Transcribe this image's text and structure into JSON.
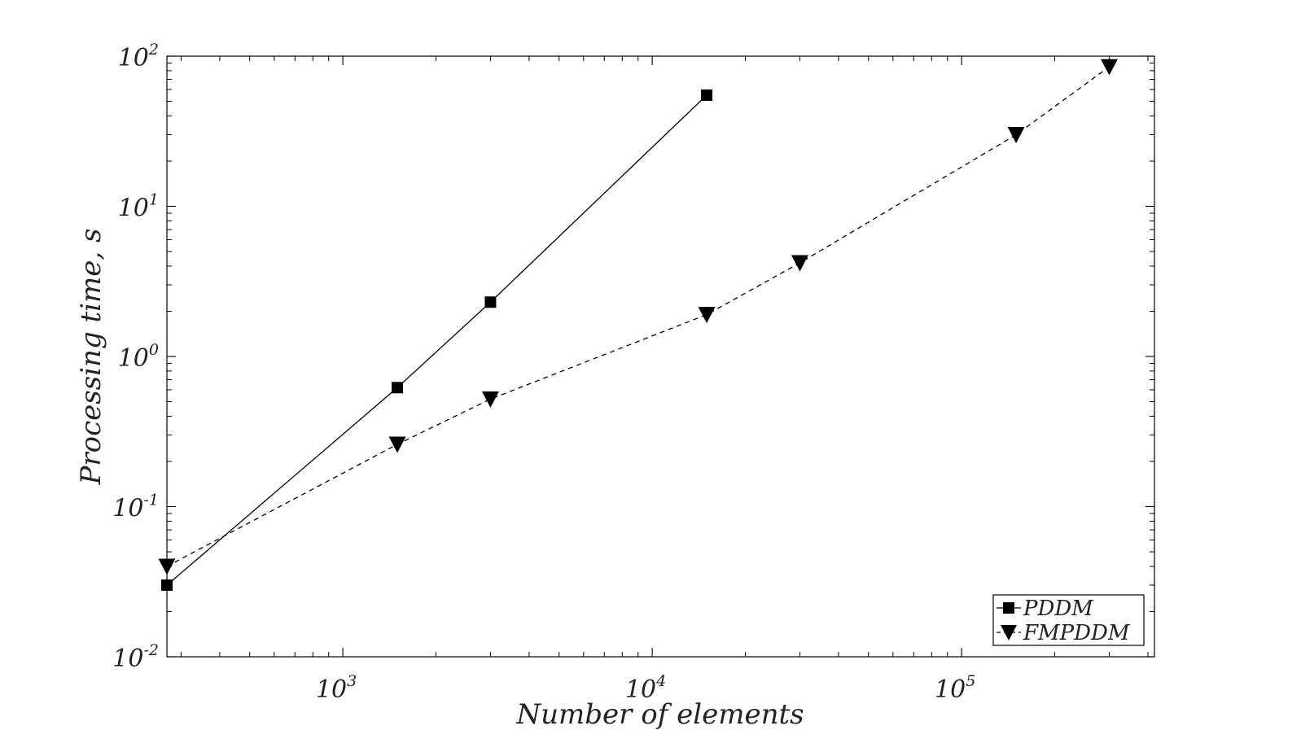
{
  "chart_data": {
    "type": "line",
    "xlabel": "Number of elements",
    "ylabel": "Processing time, s",
    "x_scale": "log",
    "y_scale": "log",
    "xlim": [
      270,
      420000
    ],
    "ylim": [
      0.01,
      100
    ],
    "x_ticks": [
      {
        "value": 1000,
        "base": "10",
        "exp": "3"
      },
      {
        "value": 10000,
        "base": "10",
        "exp": "4"
      },
      {
        "value": 100000,
        "base": "10",
        "exp": "5"
      }
    ],
    "y_ticks": [
      {
        "value": 0.01,
        "base": "10",
        "exp": "-2"
      },
      {
        "value": 0.1,
        "base": "10",
        "exp": "-1"
      },
      {
        "value": 1,
        "base": "10",
        "exp": "0"
      },
      {
        "value": 10,
        "base": "10",
        "exp": "1"
      },
      {
        "value": 100,
        "base": "10",
        "exp": "2"
      }
    ],
    "grid": false,
    "legend_position": "bottom-right",
    "series": [
      {
        "name": "PDDM",
        "marker": "square",
        "line_style": "solid",
        "color": "#000000",
        "x": [
          270,
          1500,
          3000,
          15000
        ],
        "y": [
          0.03,
          0.62,
          2.3,
          55
        ]
      },
      {
        "name": "FMPDDM",
        "marker": "triangle-down",
        "line_style": "dashed",
        "color": "#000000",
        "x": [
          270,
          1500,
          3000,
          15000,
          30000,
          150000,
          300000
        ],
        "y": [
          0.04,
          0.26,
          0.52,
          1.9,
          4.2,
          30,
          85
        ]
      }
    ]
  }
}
